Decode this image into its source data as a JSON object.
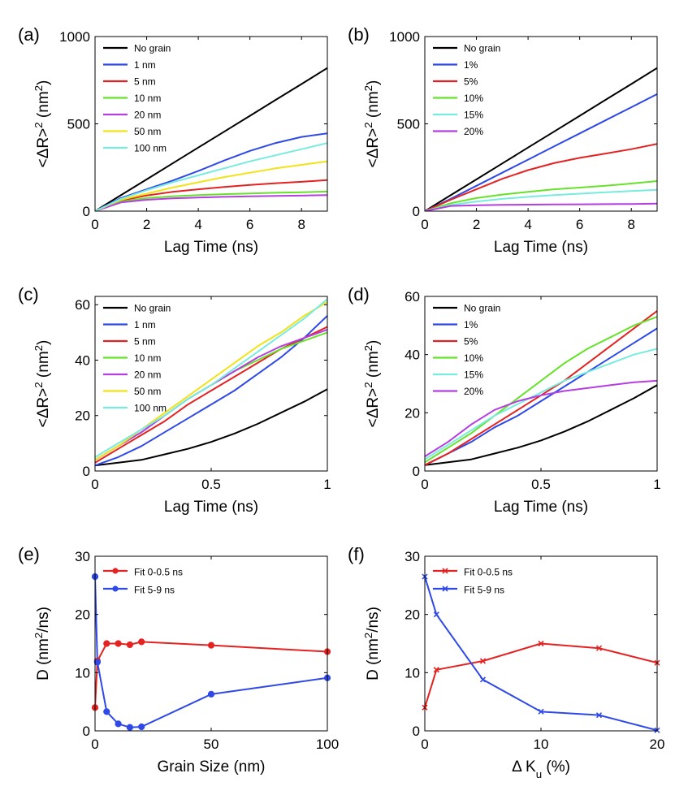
{
  "colors": {
    "black": "#000000",
    "blue": "#2f49e8",
    "red": "#e42222",
    "green": "#66e22a",
    "purple": "#b53ee0",
    "yellow": "#f2e218",
    "cyan": "#77ecde"
  },
  "chart_data": [
    {
      "id": "a",
      "panel_label": "(a)",
      "type": "line",
      "xlabel": "Lag Time (ns)",
      "ylabel": "<ΔR>² (nm²)",
      "xlim": [
        0,
        9
      ],
      "ylim": [
        0,
        1000
      ],
      "xticks": [
        0,
        2,
        4,
        6,
        8
      ],
      "yticks": [
        0,
        500,
        1000
      ],
      "legend_position": "top-left",
      "series": [
        {
          "name": "No grain",
          "color": "black",
          "x": [
            0,
            1,
            2,
            3,
            4,
            5,
            6,
            7,
            8,
            9
          ],
          "y": [
            0,
            91,
            182,
            273,
            364,
            455,
            546,
            637,
            728,
            820
          ]
        },
        {
          "name": "1 nm",
          "color": "blue",
          "x": [
            0,
            1,
            2,
            3,
            4,
            5,
            6,
            7,
            8,
            9
          ],
          "y": [
            0,
            75,
            125,
            175,
            230,
            290,
            345,
            390,
            425,
            445
          ]
        },
        {
          "name": "5 nm",
          "color": "red",
          "x": [
            0,
            1,
            2,
            3,
            4,
            5,
            6,
            7,
            8,
            9
          ],
          "y": [
            0,
            60,
            90,
            110,
            125,
            138,
            150,
            160,
            168,
            178
          ]
        },
        {
          "name": "10 nm",
          "color": "green",
          "x": [
            0,
            1,
            2,
            3,
            4,
            5,
            6,
            7,
            8,
            9
          ],
          "y": [
            0,
            55,
            75,
            85,
            92,
            97,
            101,
            105,
            108,
            112
          ]
        },
        {
          "name": "20 nm",
          "color": "purple",
          "x": [
            0,
            1,
            2,
            3,
            4,
            5,
            6,
            7,
            8,
            9
          ],
          "y": [
            0,
            50,
            65,
            73,
            78,
            82,
            85,
            87,
            89,
            92
          ]
        },
        {
          "name": "50 nm",
          "color": "yellow",
          "x": [
            0,
            1,
            2,
            3,
            4,
            5,
            6,
            7,
            8,
            9
          ],
          "y": [
            0,
            65,
            100,
            135,
            165,
            195,
            220,
            245,
            265,
            285
          ]
        },
        {
          "name": "100 nm",
          "color": "cyan",
          "x": [
            0,
            1,
            2,
            3,
            4,
            5,
            6,
            7,
            8,
            9
          ],
          "y": [
            0,
            70,
            120,
            165,
            205,
            245,
            285,
            320,
            355,
            390
          ]
        }
      ]
    },
    {
      "id": "b",
      "panel_label": "(b)",
      "type": "line",
      "xlabel": "Lag Time (ns)",
      "ylabel": "<ΔR>² (nm²)",
      "xlim": [
        0,
        9
      ],
      "ylim": [
        0,
        1000
      ],
      "xticks": [
        0,
        2,
        4,
        6,
        8
      ],
      "yticks": [
        0,
        500,
        1000
      ],
      "legend_position": "top-left",
      "series": [
        {
          "name": "No grain",
          "color": "black",
          "x": [
            0,
            1,
            2,
            3,
            4,
            5,
            6,
            7,
            8,
            9
          ],
          "y": [
            0,
            91,
            182,
            273,
            364,
            455,
            546,
            637,
            728,
            820
          ]
        },
        {
          "name": "1%",
          "color": "blue",
          "x": [
            0,
            1,
            2,
            3,
            4,
            5,
            6,
            7,
            8,
            9
          ],
          "y": [
            0,
            70,
            145,
            220,
            295,
            370,
            445,
            520,
            595,
            670
          ]
        },
        {
          "name": "5%",
          "color": "red",
          "x": [
            0,
            1,
            2,
            3,
            4,
            5,
            6,
            7,
            8,
            9
          ],
          "y": [
            0,
            65,
            125,
            185,
            235,
            275,
            305,
            330,
            355,
            385
          ]
        },
        {
          "name": "10%",
          "color": "green",
          "x": [
            0,
            1,
            2,
            3,
            4,
            5,
            6,
            7,
            8,
            9
          ],
          "y": [
            0,
            45,
            75,
            95,
            110,
            125,
            135,
            145,
            158,
            172
          ]
        },
        {
          "name": "15%",
          "color": "cyan",
          "x": [
            0,
            1,
            2,
            3,
            4,
            5,
            6,
            7,
            8,
            9
          ],
          "y": [
            0,
            35,
            55,
            70,
            82,
            92,
            100,
            108,
            115,
            122
          ]
        },
        {
          "name": "20%",
          "color": "purple",
          "x": [
            0,
            1,
            2,
            3,
            4,
            5,
            6,
            7,
            8,
            9
          ],
          "y": [
            0,
            30,
            34,
            36,
            37,
            38,
            39,
            40,
            41,
            43
          ]
        }
      ]
    },
    {
      "id": "c",
      "panel_label": "(c)",
      "type": "line",
      "xlabel": "Lag Time (ns)",
      "ylabel": "<ΔR>² (nm²)",
      "xlim": [
        0,
        1
      ],
      "ylim": [
        0,
        63
      ],
      "xticks": [
        0,
        0.5,
        1
      ],
      "yticks": [
        0,
        20,
        40,
        60
      ],
      "legend_position": "top-left",
      "series": [
        {
          "name": "No grain",
          "color": "black",
          "x": [
            0,
            0.1,
            0.2,
            0.3,
            0.4,
            0.5,
            0.6,
            0.7,
            0.8,
            0.9,
            1.0
          ],
          "y": [
            2,
            3,
            4,
            6,
            8,
            10.5,
            13.5,
            17,
            21,
            25,
            29.5
          ]
        },
        {
          "name": "1 nm",
          "color": "blue",
          "x": [
            0,
            0.1,
            0.2,
            0.3,
            0.4,
            0.5,
            0.6,
            0.7,
            0.8,
            0.9,
            1.0
          ],
          "y": [
            2,
            5,
            9,
            14,
            19,
            24,
            29,
            35,
            41,
            48,
            56
          ]
        },
        {
          "name": "5 nm",
          "color": "red",
          "x": [
            0,
            0.1,
            0.2,
            0.3,
            0.4,
            0.5,
            0.6,
            0.7,
            0.8,
            0.9,
            1.0
          ],
          "y": [
            3,
            8,
            13,
            18,
            24,
            29,
            34,
            39,
            44,
            48,
            52
          ]
        },
        {
          "name": "10 nm",
          "color": "green",
          "x": [
            0,
            0.1,
            0.2,
            0.3,
            0.4,
            0.5,
            0.6,
            0.7,
            0.8,
            0.9,
            1.0
          ],
          "y": [
            4,
            9,
            14,
            20,
            26,
            31,
            36,
            40,
            44,
            47,
            50
          ]
        },
        {
          "name": "20 nm",
          "color": "purple",
          "x": [
            0,
            0.1,
            0.2,
            0.3,
            0.4,
            0.5,
            0.6,
            0.7,
            0.8,
            0.9,
            1.0
          ],
          "y": [
            4,
            9,
            14,
            20,
            26,
            31,
            36,
            41,
            45,
            48,
            51
          ]
        },
        {
          "name": "50 nm",
          "color": "yellow",
          "x": [
            0,
            0.1,
            0.2,
            0.3,
            0.4,
            0.5,
            0.6,
            0.7,
            0.8,
            0.9,
            1.0
          ],
          "y": [
            4,
            9,
            15,
            21,
            27,
            33,
            39,
            45,
            50,
            56,
            61
          ]
        },
        {
          "name": "100 nm",
          "color": "cyan",
          "x": [
            0,
            0.1,
            0.2,
            0.3,
            0.4,
            0.5,
            0.6,
            0.7,
            0.8,
            0.9,
            1.0
          ],
          "y": [
            5,
            10,
            15,
            20,
            26,
            31,
            37,
            43,
            49,
            55,
            62
          ]
        }
      ]
    },
    {
      "id": "d",
      "panel_label": "(d)",
      "type": "line",
      "xlabel": "Lag Time (ns)",
      "ylabel": "<ΔR>² (nm²)",
      "xlim": [
        0,
        1
      ],
      "ylim": [
        0,
        60
      ],
      "xticks": [
        0,
        0.5,
        1
      ],
      "yticks": [
        0,
        20,
        40,
        60
      ],
      "legend_position": "top-left",
      "series": [
        {
          "name": "No grain",
          "color": "black",
          "x": [
            0,
            0.1,
            0.2,
            0.3,
            0.4,
            0.5,
            0.6,
            0.7,
            0.8,
            0.9,
            1.0
          ],
          "y": [
            2,
            3,
            4,
            6,
            8,
            10.5,
            13.5,
            17,
            21,
            25,
            29.5
          ]
        },
        {
          "name": "1%",
          "color": "blue",
          "x": [
            0,
            0.1,
            0.2,
            0.3,
            0.4,
            0.5,
            0.6,
            0.7,
            0.8,
            0.9,
            1.0
          ],
          "y": [
            2,
            6,
            10,
            15,
            19,
            24,
            29,
            34,
            39,
            44,
            49
          ]
        },
        {
          "name": "5%",
          "color": "red",
          "x": [
            0,
            0.1,
            0.2,
            0.3,
            0.4,
            0.5,
            0.6,
            0.7,
            0.8,
            0.9,
            1.0
          ],
          "y": [
            2,
            6,
            11,
            16,
            21,
            26,
            31,
            37,
            43,
            49,
            55
          ]
        },
        {
          "name": "10%",
          "color": "green",
          "x": [
            0,
            0.1,
            0.2,
            0.3,
            0.4,
            0.5,
            0.6,
            0.7,
            0.8,
            0.9,
            1.0
          ],
          "y": [
            3,
            8,
            13,
            19,
            25,
            31,
            37,
            42,
            46,
            50,
            53
          ]
        },
        {
          "name": "15%",
          "color": "cyan",
          "x": [
            0,
            0.1,
            0.2,
            0.3,
            0.4,
            0.5,
            0.6,
            0.7,
            0.8,
            0.9,
            1.0
          ],
          "y": [
            4,
            9,
            14,
            19,
            23,
            27,
            31,
            34,
            37,
            40,
            42
          ]
        },
        {
          "name": "20%",
          "color": "purple",
          "x": [
            0,
            0.1,
            0.2,
            0.3,
            0.4,
            0.5,
            0.6,
            0.7,
            0.8,
            0.9,
            1.0
          ],
          "y": [
            5,
            10,
            16,
            21,
            24,
            26,
            27.5,
            28.5,
            29.5,
            30.5,
            31
          ]
        }
      ]
    },
    {
      "id": "e",
      "panel_label": "(e)",
      "type": "line",
      "xlabel": "Grain Size (nm)",
      "ylabel": "D (nm²/ns)",
      "xlim": [
        0,
        100
      ],
      "ylim": [
        0,
        30
      ],
      "xticks": [
        0,
        50,
        100
      ],
      "yticks": [
        0,
        10,
        20,
        30
      ],
      "legend_position": "top-left",
      "series": [
        {
          "name": "Fit 0-0.5 ns",
          "color": "red",
          "markers": true,
          "x": [
            0,
            1,
            5,
            10,
            15,
            20,
            50,
            100
          ],
          "y": [
            4,
            12,
            15,
            15,
            14.8,
            15.3,
            14.7,
            13.6
          ]
        },
        {
          "name": "Fit 5-9 ns",
          "color": "blue",
          "markers": true,
          "x": [
            0,
            1,
            5,
            10,
            15,
            20,
            50,
            100
          ],
          "y": [
            26.5,
            11.8,
            3.3,
            1.2,
            0.6,
            0.7,
            6.3,
            9.1
          ]
        }
      ]
    },
    {
      "id": "f",
      "panel_label": "(f)",
      "type": "line",
      "xlabel": "Δ K_u (%)",
      "ylabel": "D (nm²/ns)",
      "xlim": [
        0,
        20
      ],
      "ylim": [
        0,
        30
      ],
      "xticks": [
        0,
        10,
        20
      ],
      "yticks": [
        0,
        10,
        20,
        30
      ],
      "legend_position": "top-left",
      "series": [
        {
          "name": "Fit 0-0.5 ns",
          "color": "red",
          "markers": "x",
          "x": [
            0,
            1,
            5,
            10,
            15,
            20
          ],
          "y": [
            4,
            10.5,
            12,
            15,
            14.2,
            11.7
          ]
        },
        {
          "name": "Fit 5-9 ns",
          "color": "blue",
          "markers": "x",
          "x": [
            0,
            1,
            5,
            10,
            15,
            20
          ],
          "y": [
            26.5,
            20,
            8.8,
            3.3,
            2.7,
            0.1
          ]
        }
      ]
    }
  ]
}
